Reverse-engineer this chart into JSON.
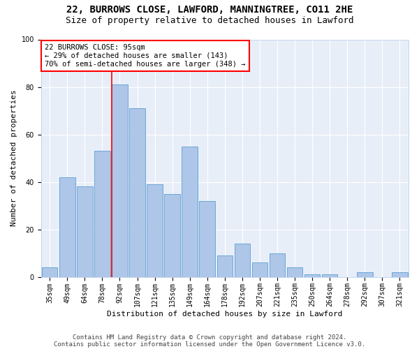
{
  "title_line1": "22, BURROWS CLOSE, LAWFORD, MANNINGTREE, CO11 2HE",
  "title_line2": "Size of property relative to detached houses in Lawford",
  "xlabel": "Distribution of detached houses by size in Lawford",
  "ylabel": "Number of detached properties",
  "categories": [
    "35sqm",
    "49sqm",
    "64sqm",
    "78sqm",
    "92sqm",
    "107sqm",
    "121sqm",
    "135sqm",
    "149sqm",
    "164sqm",
    "178sqm",
    "192sqm",
    "207sqm",
    "221sqm",
    "235sqm",
    "250sqm",
    "264sqm",
    "278sqm",
    "292sqm",
    "307sqm",
    "321sqm"
  ],
  "values": [
    4,
    42,
    38,
    53,
    81,
    71,
    39,
    35,
    55,
    32,
    9,
    14,
    6,
    10,
    4,
    1,
    1,
    0,
    2,
    0,
    2
  ],
  "bar_color": "#aec6e8",
  "bar_edge_color": "#5a9fd4",
  "property_bin_index": 4,
  "annotation_text": "22 BURROWS CLOSE: 95sqm\n← 29% of detached houses are smaller (143)\n70% of semi-detached houses are larger (348) →",
  "annotation_box_color": "white",
  "annotation_box_edge": "red",
  "vline_color": "red",
  "ylim": [
    0,
    100
  ],
  "background_color": "#e8eef8",
  "grid_color": "#ffffff",
  "footer_line1": "Contains HM Land Registry data © Crown copyright and database right 2024.",
  "footer_line2": "Contains public sector information licensed under the Open Government Licence v3.0.",
  "title_fontsize": 10,
  "subtitle_fontsize": 9,
  "axis_label_fontsize": 8,
  "tick_fontsize": 7,
  "annotation_fontsize": 7.5,
  "footer_fontsize": 6.5
}
